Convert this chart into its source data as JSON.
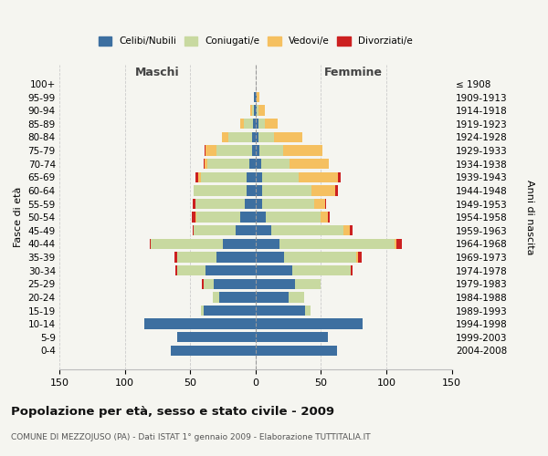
{
  "age_groups": [
    "0-4",
    "5-9",
    "10-14",
    "15-19",
    "20-24",
    "25-29",
    "30-34",
    "35-39",
    "40-44",
    "45-49",
    "50-54",
    "55-59",
    "60-64",
    "65-69",
    "70-74",
    "75-79",
    "80-84",
    "85-89",
    "90-94",
    "95-99",
    "100+"
  ],
  "birth_years": [
    "2004-2008",
    "1999-2003",
    "1994-1998",
    "1989-1993",
    "1984-1988",
    "1979-1983",
    "1974-1978",
    "1969-1973",
    "1964-1968",
    "1959-1963",
    "1954-1958",
    "1949-1953",
    "1944-1948",
    "1939-1943",
    "1934-1938",
    "1929-1933",
    "1924-1928",
    "1919-1923",
    "1914-1918",
    "1909-1913",
    "≤ 1908"
  ],
  "maschi": {
    "celibi": [
      65,
      60,
      85,
      40,
      28,
      32,
      38,
      30,
      25,
      15,
      12,
      8,
      7,
      7,
      5,
      3,
      3,
      2,
      1,
      1,
      0
    ],
    "coniugati": [
      0,
      0,
      0,
      2,
      5,
      8,
      22,
      30,
      55,
      32,
      33,
      38,
      40,
      35,
      32,
      27,
      18,
      7,
      2,
      0,
      0
    ],
    "vedovi": [
      0,
      0,
      0,
      0,
      0,
      0,
      0,
      0,
      0,
      0,
      1,
      0,
      0,
      2,
      2,
      8,
      5,
      3,
      1,
      0,
      0
    ],
    "divorziati": [
      0,
      0,
      0,
      0,
      0,
      1,
      1,
      2,
      1,
      1,
      3,
      2,
      0,
      2,
      1,
      1,
      0,
      0,
      0,
      0,
      0
    ]
  },
  "femmine": {
    "nubili": [
      62,
      55,
      82,
      38,
      25,
      30,
      28,
      22,
      18,
      12,
      8,
      5,
      5,
      5,
      4,
      3,
      2,
      2,
      1,
      1,
      0
    ],
    "coniugate": [
      0,
      0,
      0,
      4,
      12,
      20,
      45,
      55,
      88,
      55,
      42,
      40,
      38,
      28,
      22,
      18,
      12,
      5,
      1,
      0,
      0
    ],
    "vedove": [
      0,
      0,
      0,
      0,
      0,
      0,
      0,
      1,
      2,
      5,
      5,
      8,
      18,
      30,
      30,
      30,
      22,
      10,
      5,
      2,
      0
    ],
    "divorziate": [
      0,
      0,
      0,
      0,
      0,
      0,
      1,
      3,
      4,
      2,
      2,
      1,
      2,
      2,
      0,
      0,
      0,
      0,
      0,
      0,
      0
    ]
  },
  "colors": {
    "celibi_nubili": "#3d6fa0",
    "coniugati": "#c8d9a0",
    "vedovi": "#f5c060",
    "divorziati": "#cc2020"
  },
  "xlim": 150,
  "title": "Popolazione per età, sesso e stato civile - 2009",
  "subtitle": "COMUNE DI MEZZOJUSO (PA) - Dati ISTAT 1° gennaio 2009 - Elaborazione TUTTITALIA.IT",
  "ylabel_left": "Fasce di età",
  "ylabel_right": "Anni di nascita",
  "xlabel_maschi": "Maschi",
  "xlabel_femmine": "Femmine",
  "bg_color": "#f5f5f0",
  "grid_color": "#cccccc"
}
